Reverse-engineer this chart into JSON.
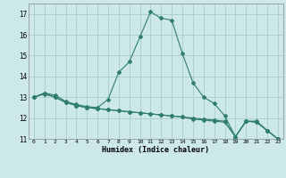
{
  "xlabel": "Humidex (Indice chaleur)",
  "background_color": "#cce8e8",
  "grid_color": "#aacccc",
  "line_color": "#2e7d6e",
  "xlim": [
    -0.5,
    23.5
  ],
  "ylim": [
    11,
    17.5
  ],
  "yticks": [
    11,
    12,
    13,
    14,
    15,
    16,
    17
  ],
  "xticks": [
    0,
    1,
    2,
    3,
    4,
    5,
    6,
    7,
    8,
    9,
    10,
    11,
    12,
    13,
    14,
    15,
    16,
    17,
    18,
    19,
    20,
    21,
    22,
    23
  ],
  "series1": {
    "x": [
      0,
      1,
      2,
      3,
      4,
      5,
      6,
      7,
      8,
      9,
      10,
      11,
      12,
      13,
      14,
      15,
      16,
      17,
      18,
      19,
      20,
      21,
      22,
      23
    ],
    "y": [
      13.0,
      13.2,
      13.1,
      12.8,
      12.65,
      12.55,
      12.5,
      12.9,
      14.2,
      14.7,
      15.9,
      17.1,
      16.8,
      16.7,
      15.1,
      13.7,
      13.0,
      12.7,
      12.1,
      11.1,
      11.85,
      11.85,
      11.4,
      11.0
    ]
  },
  "series2": {
    "x": [
      0,
      1,
      2,
      3,
      4,
      5,
      6,
      7,
      8,
      9,
      10,
      11,
      12,
      13,
      14,
      15,
      16,
      17,
      18,
      19,
      20,
      21,
      22,
      23
    ],
    "y": [
      13.0,
      13.2,
      13.0,
      12.75,
      12.6,
      12.5,
      12.45,
      12.4,
      12.35,
      12.3,
      12.25,
      12.2,
      12.15,
      12.1,
      12.05,
      12.0,
      11.95,
      11.9,
      11.85,
      11.1,
      11.85,
      11.8,
      11.4,
      11.0
    ]
  },
  "series3": {
    "x": [
      0,
      1,
      2,
      3,
      4,
      5,
      6,
      7,
      8,
      9,
      10,
      11,
      12,
      13,
      14,
      15,
      16,
      17,
      18,
      19,
      20,
      21,
      22,
      23
    ],
    "y": [
      13.0,
      13.15,
      13.0,
      12.75,
      12.6,
      12.5,
      12.45,
      12.4,
      12.35,
      12.3,
      12.25,
      12.2,
      12.15,
      12.1,
      12.05,
      11.95,
      11.9,
      11.85,
      11.8,
      11.1,
      11.85,
      11.8,
      11.4,
      11.0
    ]
  }
}
